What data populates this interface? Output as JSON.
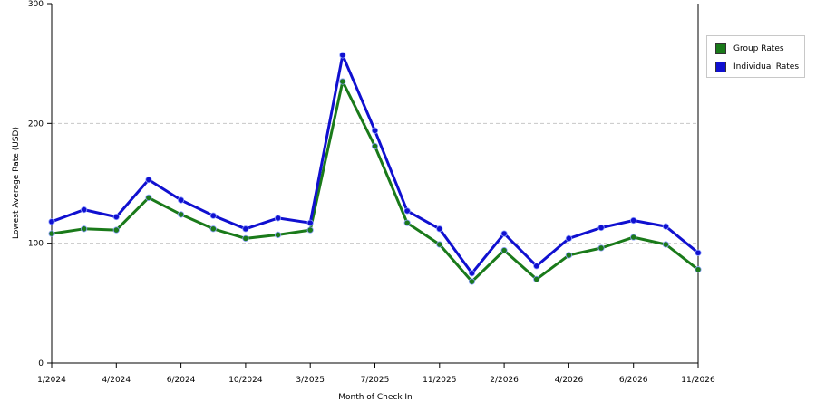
{
  "chart_data": {
    "type": "line",
    "xlabel": "Month of Check In",
    "ylabel": "Lowest Average Rate (USD)",
    "ylim": [
      0,
      300
    ],
    "yticks": [
      0,
      100,
      200,
      300
    ],
    "grid": true,
    "legend_position": "right",
    "x": [
      "1/2024",
      "2/2024",
      "4/2024",
      "5/2024",
      "6/2024",
      "8/2024",
      "10/2024",
      "12/2024",
      "3/2025",
      "5/2025",
      "7/2025",
      "9/2025",
      "11/2025",
      "12/2025",
      "2/2026",
      "3/2026",
      "4/2026",
      "5/2026",
      "6/2026",
      "8/2026",
      "11/2026"
    ],
    "xticks": [
      "1/2024",
      "4/2024",
      "6/2024",
      "10/2024",
      "3/2025",
      "7/2025",
      "11/2025",
      "2/2026",
      "4/2026",
      "6/2026",
      "11/2026"
    ],
    "series": [
      {
        "name": "Group Rates",
        "color": "#1a7a1a",
        "values": [
          108,
          112,
          111,
          138,
          124,
          112,
          104,
          107,
          111,
          235,
          181,
          117,
          99,
          68,
          94,
          70,
          90,
          96,
          105,
          99,
          78
        ]
      },
      {
        "name": "Individual Rates",
        "color": "#1010d0",
        "values": [
          118,
          128,
          122,
          153,
          136,
          123,
          112,
          121,
          117,
          257,
          194,
          127,
          112,
          75,
          108,
          81,
          104,
          113,
          119,
          114,
          92
        ]
      }
    ]
  }
}
